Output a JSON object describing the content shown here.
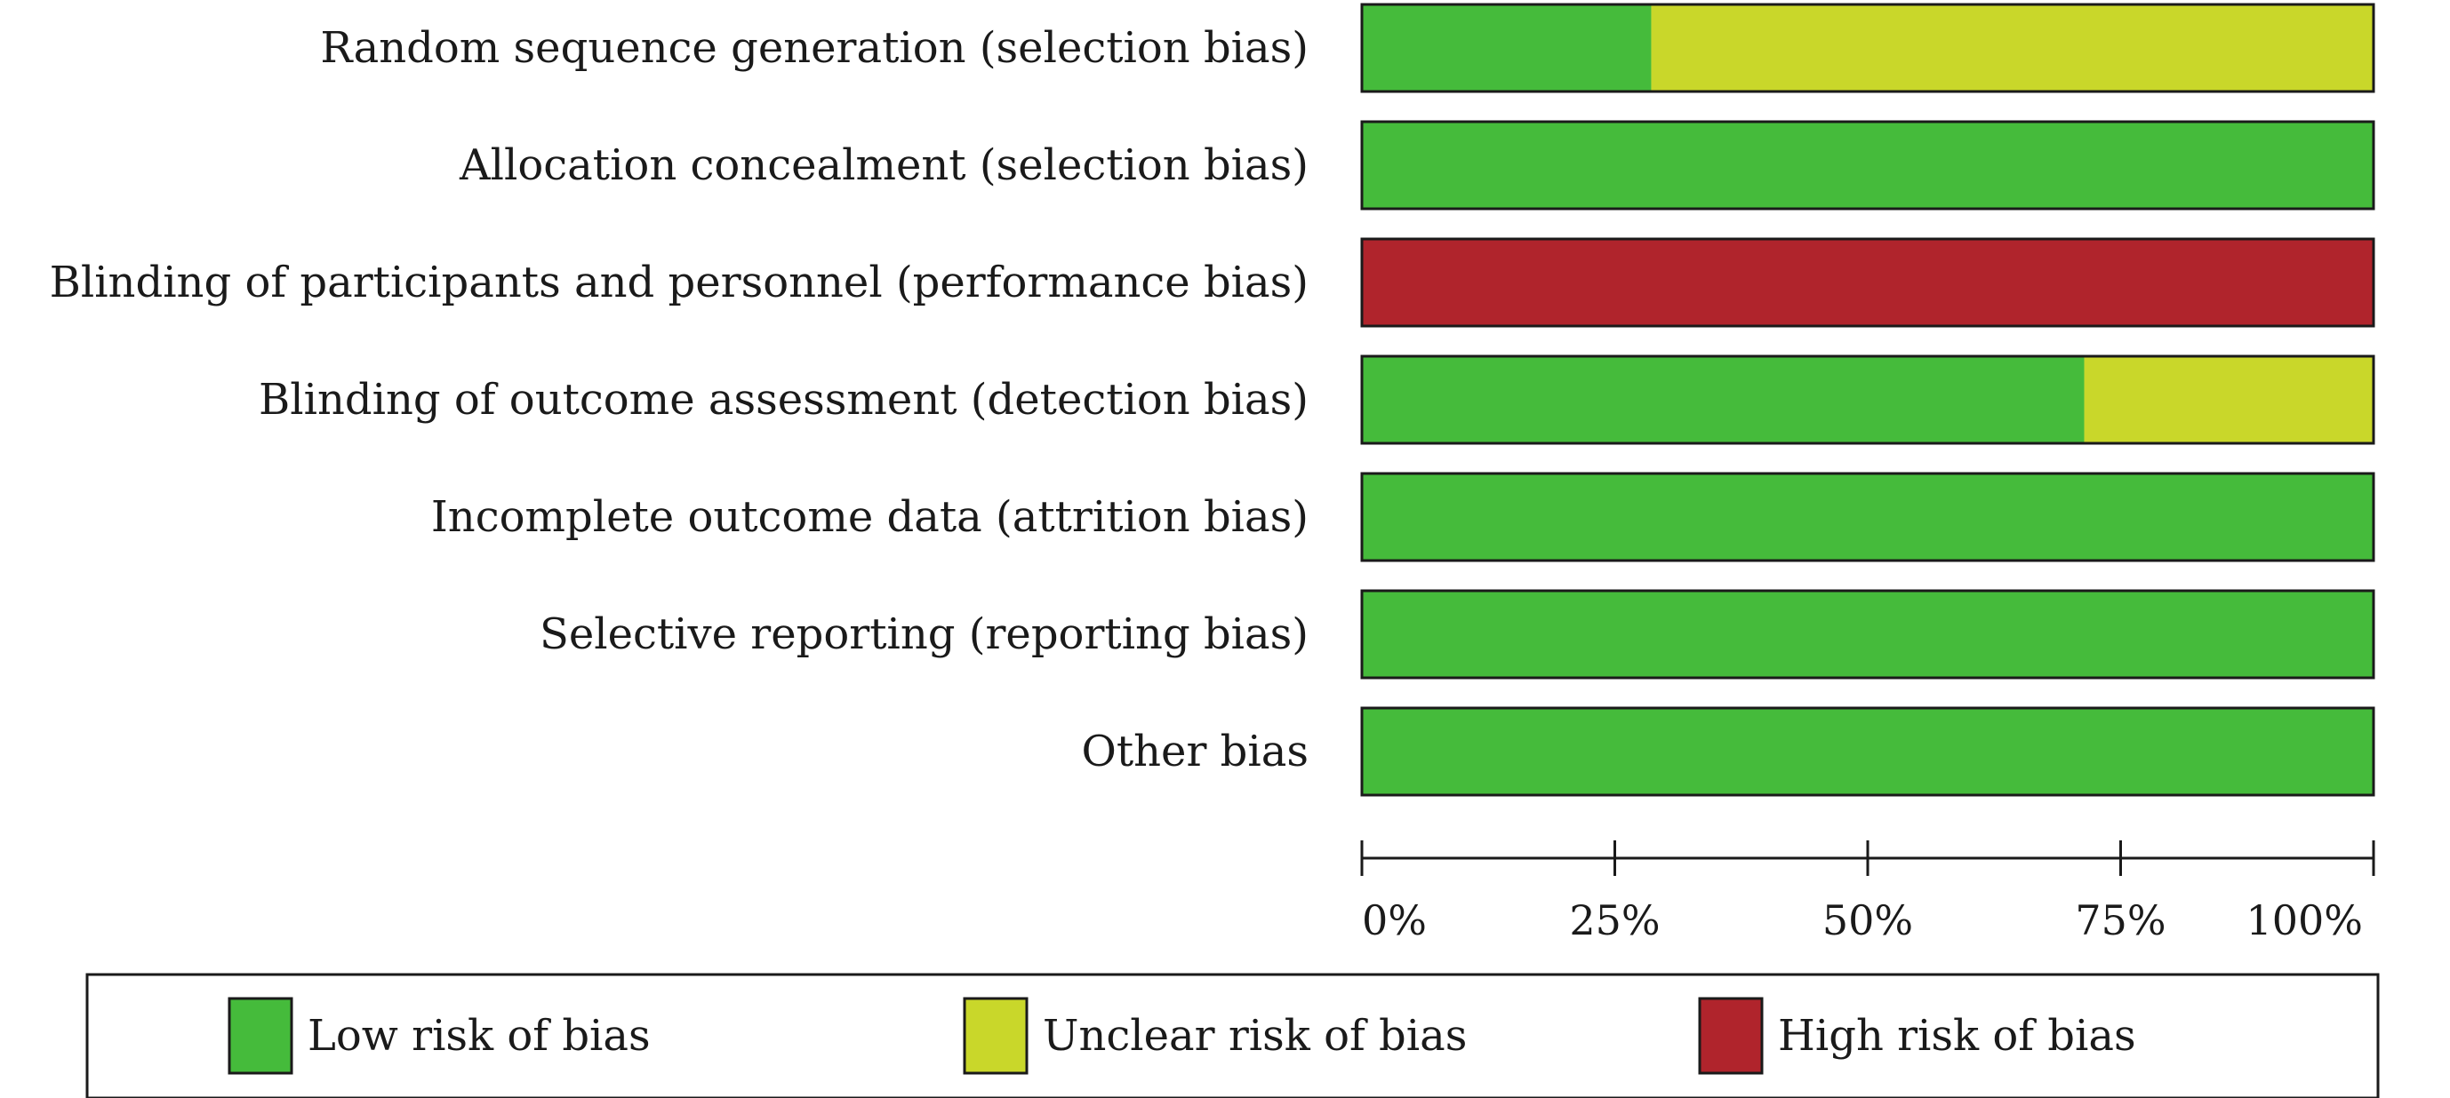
{
  "chart_data": {
    "type": "bar",
    "stacked": true,
    "orientation": "horizontal",
    "percent": true,
    "categories": [
      "Random sequence generation (selection bias)",
      "Allocation concealment (selection bias)",
      "Blinding of participants and personnel (performance bias)",
      "Blinding of outcome assessment (detection bias)",
      "Incomplete outcome data (attrition bias)",
      "Selective reporting (reporting bias)",
      "Other bias"
    ],
    "series": [
      {
        "name": "Low risk of bias",
        "color": "#45bb3b",
        "values": [
          28.6,
          100,
          0,
          71.4,
          100,
          100,
          100
        ]
      },
      {
        "name": "Unclear risk of bias",
        "color": "#c9d72a",
        "values": [
          71.4,
          0,
          0,
          28.6,
          0,
          0,
          0
        ]
      },
      {
        "name": "High risk of bias",
        "color": "#b0242c",
        "values": [
          0,
          0,
          100,
          0,
          0,
          0,
          0
        ]
      }
    ],
    "xlim": [
      0,
      100
    ],
    "xticks": [
      0,
      25,
      50,
      75,
      100
    ],
    "xtick_labels": [
      "0%",
      "25%",
      "50%",
      "75%",
      "100%"
    ],
    "grid": false,
    "legend_position": "bottom"
  }
}
